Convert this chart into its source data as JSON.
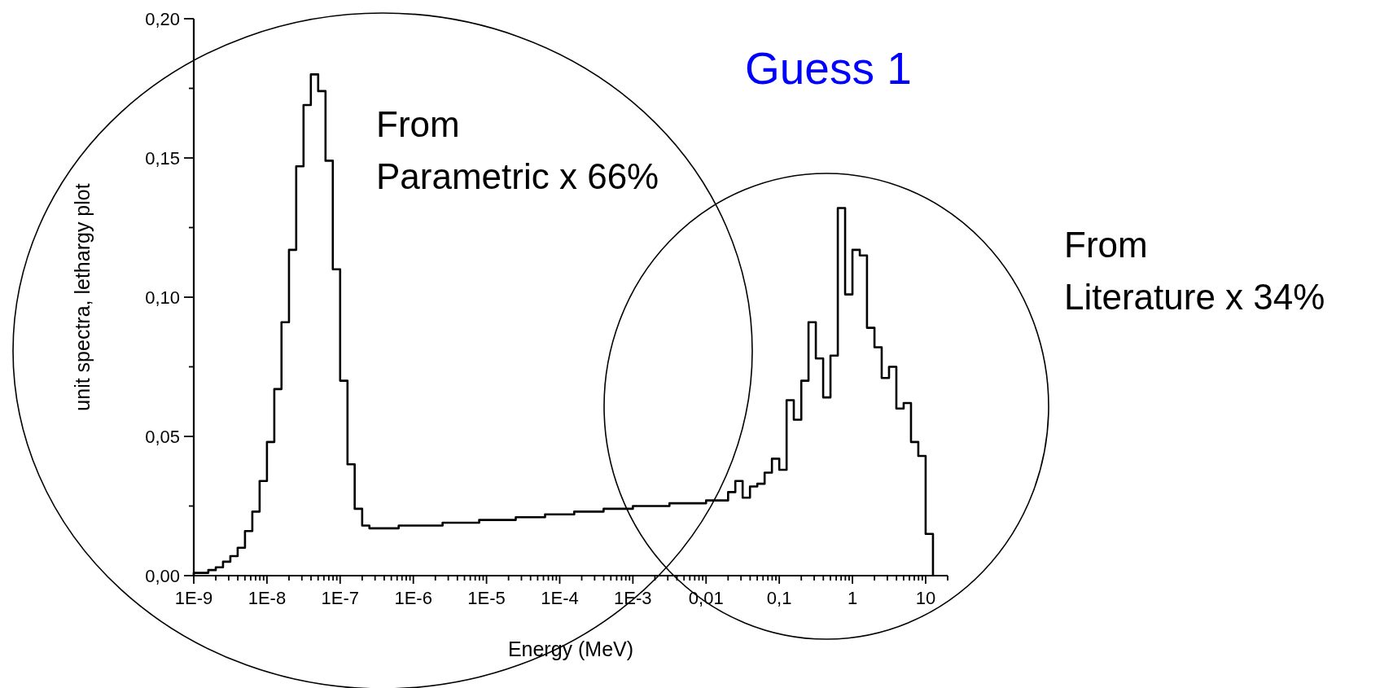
{
  "chart_data": {
    "type": "histogram",
    "xlabel": "Energy (MeV)",
    "ylabel": "unit spectra, lethargy plot",
    "color": "#000000",
    "log": "x",
    "grid": false,
    "annotations": [
      "Guess 1",
      "From\nParametric x 66%",
      "From\nLiterature x 34%"
    ],
    "bins": [
      1e-09,
      1.26e-09,
      1.58e-09,
      2e-09,
      2.51e-09,
      3.16e-09,
      3.98e-09,
      5.01e-09,
      6.31e-09,
      7.94e-09,
      1e-08,
      1.26e-08,
      1.58e-08,
      2e-08,
      2.51e-08,
      3.16e-08,
      3.98e-08,
      5.01e-08,
      6.31e-08,
      7.94e-08,
      1e-07,
      1.26e-07,
      1.58e-07,
      2e-07,
      2.51e-07,
      3.16e-07,
      3.98e-07,
      5.01e-07,
      6.31e-07,
      7.94e-07,
      1e-06,
      1.26e-06,
      1.58e-06,
      2e-06,
      2.51e-06,
      3.16e-06,
      3.98e-06,
      5.01e-06,
      6.31e-06,
      7.94e-06,
      1e-05,
      1.26e-05,
      1.58e-05,
      2e-05,
      2.51e-05,
      3.16e-05,
      3.98e-05,
      5.01e-05,
      6.31e-05,
      7.94e-05,
      0.0001,
      0.000126,
      0.000158,
      0.0002,
      0.000251,
      0.000316,
      0.000398,
      0.000501,
      0.000631,
      0.000794,
      0.001,
      0.00126,
      0.00158,
      0.002,
      0.00251,
      0.00316,
      0.00398,
      0.00501,
      0.00631,
      0.00794,
      0.01,
      0.0126,
      0.0158,
      0.02,
      0.0251,
      0.0316,
      0.0398,
      0.0501,
      0.0631,
      0.0794,
      0.1,
      0.126,
      0.158,
      0.2,
      0.251,
      0.316,
      0.398,
      0.501,
      0.631,
      0.794,
      1,
      1.26,
      1.58,
      2,
      2.51,
      3.16,
      3.98,
      5.01,
      6.31,
      7.94,
      10,
      12.6
    ],
    "values": [
      0.001,
      0.001,
      0.002,
      0.003,
      0.005,
      0.007,
      0.01,
      0.016,
      0.023,
      0.034,
      0.048,
      0.067,
      0.091,
      0.117,
      0.147,
      0.169,
      0.18,
      0.174,
      0.149,
      0.11,
      0.07,
      0.04,
      0.024,
      0.018,
      0.017,
      0.017,
      0.017,
      0.017,
      0.018,
      0.018,
      0.018,
      0.018,
      0.018,
      0.018,
      0.019,
      0.019,
      0.019,
      0.019,
      0.019,
      0.02,
      0.02,
      0.02,
      0.02,
      0.02,
      0.021,
      0.021,
      0.021,
      0.021,
      0.022,
      0.022,
      0.022,
      0.022,
      0.023,
      0.023,
      0.023,
      0.023,
      0.024,
      0.024,
      0.024,
      0.024,
      0.025,
      0.025,
      0.025,
      0.025,
      0.025,
      0.026,
      0.026,
      0.026,
      0.026,
      0.026,
      0.027,
      0.027,
      0.027,
      0.03,
      0.034,
      0.028,
      0.032,
      0.033,
      0.037,
      0.042,
      0.038,
      0.063,
      0.056,
      0.07,
      0.091,
      0.078,
      0.064,
      0.079,
      0.132,
      0.101,
      0.117,
      0.115,
      0.089,
      0.082,
      0.071,
      0.075,
      0.06,
      0.062,
      0.048,
      0.043,
      0.015
    ],
    "xlim": [
      1e-09,
      20
    ],
    "ylim": [
      0,
      0.2
    ],
    "yticks": [
      {
        "value": 0,
        "label": "0,00"
      },
      {
        "value": 0.025,
        "label": null
      },
      {
        "value": 0.05,
        "label": "0,05"
      },
      {
        "value": 0.075,
        "label": null
      },
      {
        "value": 0.1,
        "label": "0,10"
      },
      {
        "value": 0.125,
        "label": null
      },
      {
        "value": 0.15,
        "label": "0,15"
      },
      {
        "value": 0.175,
        "label": null
      },
      {
        "value": 0.2,
        "label": "0,20"
      }
    ],
    "xticks": [
      {
        "value": 1e-09,
        "label": "1E-9"
      },
      {
        "value": 1e-08,
        "label": "1E-8"
      },
      {
        "value": 1e-07,
        "label": "1E-7"
      },
      {
        "value": 1e-06,
        "label": "1E-6"
      },
      {
        "value": 1e-05,
        "label": "1E-5"
      },
      {
        "value": 0.0001,
        "label": "1E-4"
      },
      {
        "value": 0.001,
        "label": "1E-3"
      },
      {
        "value": 0.01,
        "label": "0,01"
      },
      {
        "value": 0.1,
        "label": "0,1"
      },
      {
        "value": 1,
        "label": "1"
      },
      {
        "value": 10,
        "label": "10"
      },
      {
        "value": 2e-09,
        "label": null
      },
      {
        "value": 3e-09,
        "label": null
      },
      {
        "value": 4e-09,
        "label": null
      },
      {
        "value": 5e-09,
        "label": null
      },
      {
        "value": 6e-09,
        "label": null
      },
      {
        "value": 7e-09,
        "label": null
      },
      {
        "value": 8e-09,
        "label": null
      },
      {
        "value": 9e-09,
        "label": null
      },
      {
        "value": 2e-08,
        "label": null
      },
      {
        "value": 3e-08,
        "label": null
      },
      {
        "value": 4e-08,
        "label": null
      },
      {
        "value": 5e-08,
        "label": null
      },
      {
        "value": 6e-08,
        "label": null
      },
      {
        "value": 7e-08,
        "label": null
      },
      {
        "value": 8e-08,
        "label": null
      },
      {
        "value": 9e-08,
        "label": null
      },
      {
        "value": 2e-07,
        "label": null
      },
      {
        "value": 3e-07,
        "label": null
      },
      {
        "value": 4e-07,
        "label": null
      },
      {
        "value": 5e-07,
        "label": null
      },
      {
        "value": 6e-07,
        "label": null
      },
      {
        "value": 7e-07,
        "label": null
      },
      {
        "value": 8e-07,
        "label": null
      },
      {
        "value": 9e-07,
        "label": null
      },
      {
        "value": 2e-06,
        "label": null
      },
      {
        "value": 3e-06,
        "label": null
      },
      {
        "value": 4e-06,
        "label": null
      },
      {
        "value": 5e-06,
        "label": null
      },
      {
        "value": 6e-06,
        "label": null
      },
      {
        "value": 7e-06,
        "label": null
      },
      {
        "value": 8e-06,
        "label": null
      },
      {
        "value": 9e-06,
        "label": null
      },
      {
        "value": 2e-05,
        "label": null
      },
      {
        "value": 3e-05,
        "label": null
      },
      {
        "value": 4e-05,
        "label": null
      },
      {
        "value": 5e-05,
        "label": null
      },
      {
        "value": 6e-05,
        "label": null
      },
      {
        "value": 7e-05,
        "label": null
      },
      {
        "value": 8e-05,
        "label": null
      },
      {
        "value": 9e-05,
        "label": null
      },
      {
        "value": 0.0002,
        "label": null
      },
      {
        "value": 0.0003,
        "label": null
      },
      {
        "value": 0.0004,
        "label": null
      },
      {
        "value": 0.0005,
        "label": null
      },
      {
        "value": 0.0006,
        "label": null
      },
      {
        "value": 0.0007,
        "label": null
      },
      {
        "value": 0.0008,
        "label": null
      },
      {
        "value": 0.0009,
        "label": null
      },
      {
        "value": 0.002,
        "label": null
      },
      {
        "value": 0.003,
        "label": null
      },
      {
        "value": 0.004,
        "label": null
      },
      {
        "value": 0.005,
        "label": null
      },
      {
        "value": 0.006,
        "label": null
      },
      {
        "value": 0.007,
        "label": null
      },
      {
        "value": 0.008,
        "label": null
      },
      {
        "value": 0.009,
        "label": null
      },
      {
        "value": 0.02,
        "label": null
      },
      {
        "value": 0.03,
        "label": null
      },
      {
        "value": 0.04,
        "label": null
      },
      {
        "value": 0.05,
        "label": null
      },
      {
        "value": 0.06,
        "label": null
      },
      {
        "value": 0.07,
        "label": null
      },
      {
        "value": 0.08,
        "label": null
      },
      {
        "value": 0.09,
        "label": null
      },
      {
        "value": 0.2,
        "label": null
      },
      {
        "value": 0.3,
        "label": null
      },
      {
        "value": 0.4,
        "label": null
      },
      {
        "value": 0.5,
        "label": null
      },
      {
        "value": 0.6,
        "label": null
      },
      {
        "value": 0.7,
        "label": null
      },
      {
        "value": 0.8,
        "label": null
      },
      {
        "value": 0.9,
        "label": null
      },
      {
        "value": 2,
        "label": null
      },
      {
        "value": 3,
        "label": null
      },
      {
        "value": 4,
        "label": null
      },
      {
        "value": 5,
        "label": null
      },
      {
        "value": 6,
        "label": null
      },
      {
        "value": 7,
        "label": null
      },
      {
        "value": 8,
        "label": null
      },
      {
        "value": 9,
        "label": null
      },
      {
        "value": 20,
        "label": null
      }
    ]
  }
}
